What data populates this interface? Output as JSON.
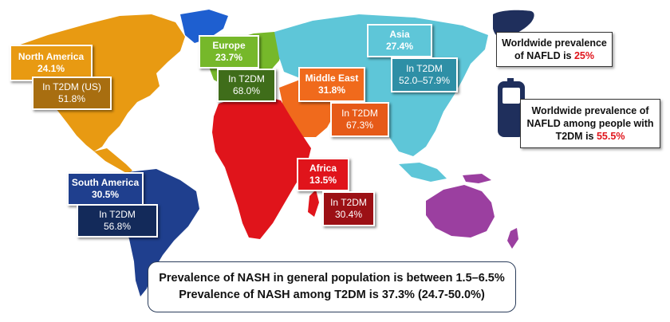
{
  "regions": {
    "north_america": {
      "name": "North America",
      "prevalence": "24.1%",
      "t2dm_label": "In T2DM (US)",
      "t2dm_value": "51.8%",
      "color": "#e89a12",
      "dark_color": "#a86e10"
    },
    "south_america": {
      "name": "South America",
      "prevalence": "30.5%",
      "t2dm_label": "In T2DM",
      "t2dm_value": "56.8%",
      "color": "#1f3f8e",
      "dark_color": "#132a5a"
    },
    "europe": {
      "name": "Europe",
      "prevalence": "23.7%",
      "t2dm_label": "In T2DM",
      "t2dm_value": "68.0%",
      "color": "#76b82a",
      "dark_color": "#3f6d1a"
    },
    "middle_east": {
      "name": "Middle East",
      "prevalence": "31.8%",
      "t2dm_label": "In T2DM",
      "t2dm_value": "67.3%",
      "color": "#f06a1c",
      "dark_color": "#e65a18"
    },
    "africa": {
      "name": "Africa",
      "prevalence": "13.5%",
      "t2dm_label": "In T2DM",
      "t2dm_value": "30.4%",
      "color": "#e0141b",
      "dark_color": "#9c1015"
    },
    "asia": {
      "name": "Asia",
      "prevalence": "27.4%",
      "t2dm_label": "In T2DM",
      "t2dm_value": "52.0–57.9%",
      "color": "#5ec6d8",
      "dark_color": "#2e8fa6"
    },
    "oceania": {
      "color": "#9b3fa0"
    }
  },
  "nafld_worldwide": {
    "text": "Worldwide prevalence of NAFLD is",
    "value": "25%"
  },
  "nafld_t2dm": {
    "text": "Worldwide prevalence of NAFLD among people with T2DM is",
    "value": "55.5%"
  },
  "icons": {
    "liver": "liver-icon",
    "glucometer": "glucometer-icon"
  },
  "nash": {
    "line1": "Prevalence of NASH in general population is between 1.5–6.5%",
    "line2": "Prevalence of NASH among T2DM is 37.3% (24.7-50.0%)"
  }
}
